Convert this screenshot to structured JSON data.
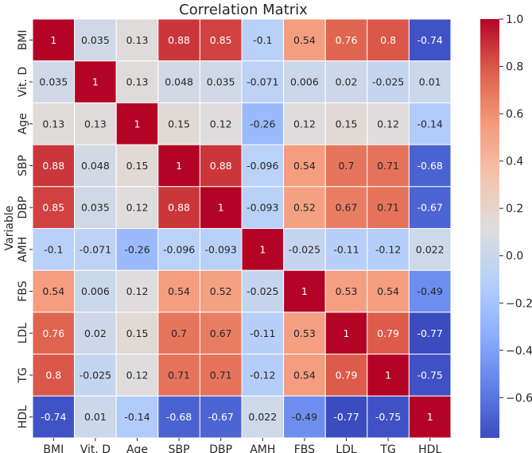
{
  "chart_data": {
    "type": "heatmap",
    "title": "Correlation Matrix",
    "ylabel": "Variable",
    "xlabel": "",
    "x_categories": [
      "BMI",
      "Vit. D",
      "Age",
      "SBP",
      "DBP",
      "AMH",
      "FBS",
      "LDL",
      "TG",
      "HDL"
    ],
    "y_categories": [
      "BMI",
      "Vit. D",
      "Age",
      "SBP",
      "DBP",
      "AMH",
      "FBS",
      "LDL",
      "TG",
      "HDL"
    ],
    "values": [
      [
        1,
        0.035,
        0.13,
        0.88,
        0.85,
        -0.1,
        0.54,
        0.76,
        0.8,
        -0.74
      ],
      [
        0.035,
        1,
        0.13,
        0.048,
        0.035,
        -0.071,
        0.006,
        0.02,
        -0.025,
        0.01
      ],
      [
        0.13,
        0.13,
        1,
        0.15,
        0.12,
        -0.26,
        0.12,
        0.15,
        0.12,
        -0.14
      ],
      [
        0.88,
        0.048,
        0.15,
        1,
        0.88,
        -0.096,
        0.54,
        0.7,
        0.71,
        -0.68
      ],
      [
        0.85,
        0.035,
        0.12,
        0.88,
        1,
        -0.093,
        0.52,
        0.67,
        0.71,
        -0.67
      ],
      [
        -0.1,
        -0.071,
        -0.26,
        -0.096,
        -0.093,
        1,
        -0.025,
        -0.11,
        -0.12,
        0.022
      ],
      [
        0.54,
        0.006,
        0.12,
        0.54,
        0.52,
        -0.025,
        1,
        0.53,
        0.54,
        -0.49
      ],
      [
        0.76,
        0.02,
        0.15,
        0.7,
        0.67,
        -0.11,
        0.53,
        1,
        0.79,
        -0.77
      ],
      [
        0.8,
        -0.025,
        0.12,
        0.71,
        0.71,
        -0.12,
        0.54,
        0.79,
        1,
        -0.75
      ],
      [
        -0.74,
        0.01,
        -0.14,
        -0.68,
        -0.67,
        0.022,
        -0.49,
        -0.77,
        -0.75,
        1
      ]
    ],
    "labels": [
      [
        "1",
        "0.035",
        "0.13",
        "0.88",
        "0.85",
        "-0.1",
        "0.54",
        "0.76",
        "0.8",
        "-0.74"
      ],
      [
        "0.035",
        "1",
        "0.13",
        "0.048",
        "0.035",
        "-0.071",
        "0.006",
        "0.02",
        "-0.025",
        "0.01"
      ],
      [
        "0.13",
        "0.13",
        "1",
        "0.15",
        "0.12",
        "-0.26",
        "0.12",
        "0.15",
        "0.12",
        "-0.14"
      ],
      [
        "0.88",
        "0.048",
        "0.15",
        "1",
        "0.88",
        "-0.096",
        "0.54",
        "0.7",
        "0.71",
        "-0.68"
      ],
      [
        "0.85",
        "0.035",
        "0.12",
        "0.88",
        "1",
        "-0.093",
        "0.52",
        "0.67",
        "0.71",
        "-0.67"
      ],
      [
        "-0.1",
        "-0.071",
        "-0.26",
        "-0.096",
        "-0.093",
        "1",
        "-0.025",
        "-0.11",
        "-0.12",
        "0.022"
      ],
      [
        "0.54",
        "0.006",
        "0.12",
        "0.54",
        "0.52",
        "-0.025",
        "1",
        "0.53",
        "0.54",
        "-0.49"
      ],
      [
        "0.76",
        "0.02",
        "0.15",
        "0.7",
        "0.67",
        "-0.11",
        "0.53",
        "1",
        "0.79",
        "-0.77"
      ],
      [
        "0.8",
        "-0.025",
        "0.12",
        "0.71",
        "0.71",
        "-0.12",
        "0.54",
        "0.79",
        "1",
        "-0.75"
      ],
      [
        "-0.74",
        "0.01",
        "-0.14",
        "-0.68",
        "-0.67",
        "0.022",
        "-0.49",
        "-0.77",
        "-0.75",
        "1"
      ]
    ],
    "colorscale": "coolwarm",
    "colorbar": {
      "vmin": -0.77,
      "vmax": 1.0,
      "ticks": [
        1.0,
        0.8,
        0.6,
        0.4,
        0.2,
        0.0,
        -0.2,
        -0.4,
        -0.6
      ],
      "tick_labels": [
        "1.0",
        "0.8",
        "0.6",
        "0.4",
        "0.2",
        "0.0",
        "−0.2",
        "−0.4",
        "−0.6"
      ]
    }
  }
}
